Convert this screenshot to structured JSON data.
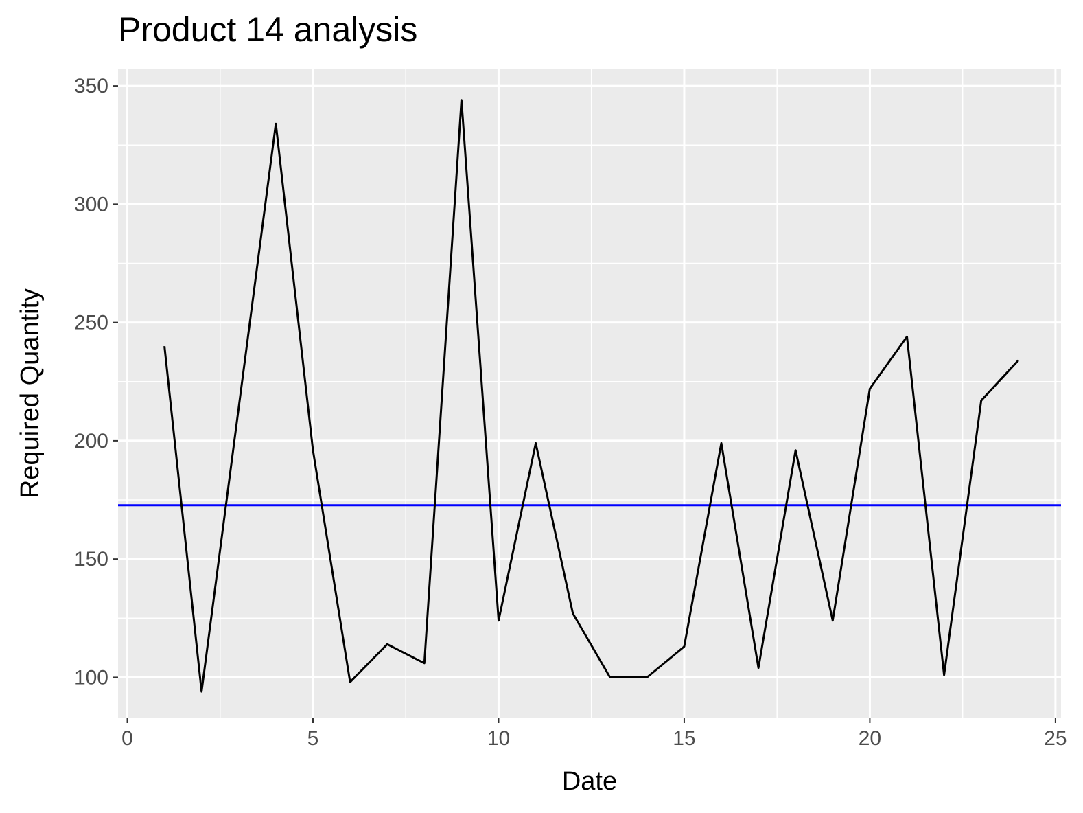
{
  "chart_data": {
    "type": "line",
    "title": "Product 14 analysis",
    "xlabel": "Date",
    "ylabel": "Required Quantity",
    "xlim": [
      -0.25,
      25.15
    ],
    "ylim": [
      83,
      357
    ],
    "x_ticks": [
      0,
      5,
      10,
      15,
      20,
      25
    ],
    "y_ticks": [
      100,
      150,
      200,
      250,
      300,
      350
    ],
    "grid": true,
    "series": [
      {
        "x": [
          1,
          2,
          3,
          4,
          5,
          6,
          7,
          8,
          9,
          10,
          11,
          12,
          13,
          14,
          15,
          16,
          17,
          18,
          19,
          20,
          21,
          22,
          23,
          24
        ],
        "values": [
          240,
          94,
          214,
          334,
          196,
          98,
          114,
          106,
          344,
          124,
          199,
          127,
          100,
          100,
          113,
          199,
          104,
          196,
          124,
          222,
          244,
          101,
          217,
          234
        ],
        "color": "#000000"
      }
    ],
    "hline": {
      "value": 172.75,
      "color": "#0000ff"
    },
    "colors": {
      "panel_background": "#ebebeb",
      "grid": "#ffffff",
      "tick_text": "#4d4d4d"
    }
  }
}
